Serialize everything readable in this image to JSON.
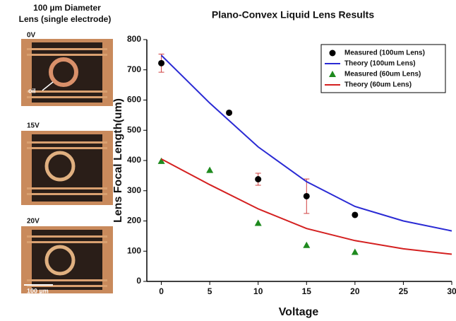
{
  "panel": {
    "title": [
      "100 µm Diameter",
      "Lens (single electrode)"
    ],
    "image_labels": [
      "0V",
      "15V",
      "20V"
    ],
    "annotation": "oil",
    "scale_bar": "100 µm"
  },
  "chart_data": {
    "type": "scatter-line",
    "title": "Plano-Convex Liquid Lens Results",
    "x_label": "Voltage",
    "y_label": "Lens Focal Length(um)",
    "xlim": [
      -1.5,
      30
    ],
    "ylim": [
      0,
      800
    ],
    "xticks": [
      0,
      5,
      10,
      15,
      20,
      25,
      30
    ],
    "yticks": [
      0,
      100,
      200,
      300,
      400,
      500,
      600,
      700,
      800
    ],
    "legend": "upper right",
    "series": [
      {
        "name": "Measured (100um Lens)",
        "color": "#000000",
        "mode": "markers",
        "marker": "circle",
        "x": [
          0,
          7,
          10,
          15,
          20
        ],
        "values": [
          722,
          558,
          338,
          282,
          220
        ],
        "errors": [
          30,
          5,
          20,
          57,
          0
        ]
      },
      {
        "name": "Theory (100um Lens)",
        "color": "#2a2ad4",
        "mode": "line",
        "x": [
          0,
          5,
          10,
          15,
          20,
          25,
          30
        ],
        "values": [
          748,
          590,
          445,
          330,
          248,
          200,
          167
        ]
      },
      {
        "name": "Measured (60um Lens)",
        "color": "#1e8a1e",
        "mode": "markers",
        "marker": "triangle",
        "x": [
          0,
          5,
          10,
          15,
          20
        ],
        "values": [
          398,
          368,
          193,
          120,
          97
        ]
      },
      {
        "name": "Theory (60um Lens)",
        "color": "#d42020",
        "mode": "line",
        "x": [
          0,
          5,
          10,
          15,
          20,
          25,
          30
        ],
        "values": [
          405,
          320,
          240,
          175,
          135,
          108,
          90
        ]
      }
    ]
  }
}
